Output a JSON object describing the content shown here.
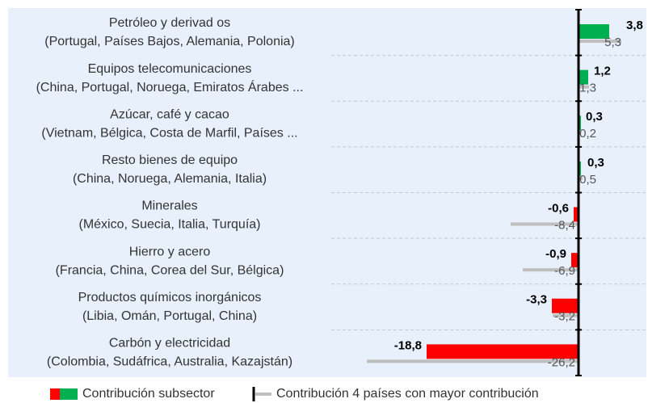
{
  "chart_data": {
    "type": "bar",
    "orientation": "horizontal",
    "categories": [
      "Petróleo y derivad os",
      "Equipos telecomunicaciones",
      "Azúcar, café y cacao",
      "Resto bienes de equipo",
      "Minerales",
      "Hierro y acero",
      "Productos químicos inorgánicos",
      "Carbón y electricidad"
    ],
    "category_details": [
      "(Portugal, Países Bajos, Alemania, Polonia)",
      "(China, Portugal, Noruega, Emiratos Árabes ...",
      "(Vietnam, Bélgica, Costa de Marfil, Países ...",
      "(China, Noruega, Alemania, Italia)",
      "(México, Suecia, Italia, Turquía)",
      "(Francia, China, Corea del Sur, Bélgica)",
      "(Libia, Omán, Portugal, China)",
      "(Colombia, Sudáfrica, Australia, Kazajstán)"
    ],
    "series": [
      {
        "name": "Contribución subsector",
        "color": "#00b050",
        "negative_color": "#ff0000",
        "values": [
          3.8,
          1.2,
          0.3,
          0.3,
          -0.6,
          -0.9,
          -3.3,
          -18.8
        ],
        "value_labels": [
          "3,8",
          "1,2",
          "0,3",
          "0,3",
          "-0,6",
          "-0,9",
          "-3,3",
          "-18,8"
        ]
      },
      {
        "name": "Contribución 4 países con mayor contribución",
        "color": "#bfbfbf",
        "values": [
          5.3,
          1.3,
          0.2,
          0.5,
          -8.4,
          -6.9,
          -3.2,
          -26.2
        ],
        "value_labels": [
          "5,3",
          "1,3",
          "0,2",
          "0,5",
          "-8,4",
          "-6,9",
          "-3,2",
          "-26,2"
        ]
      }
    ],
    "xlim": [
      -28,
      8.5
    ]
  }
}
